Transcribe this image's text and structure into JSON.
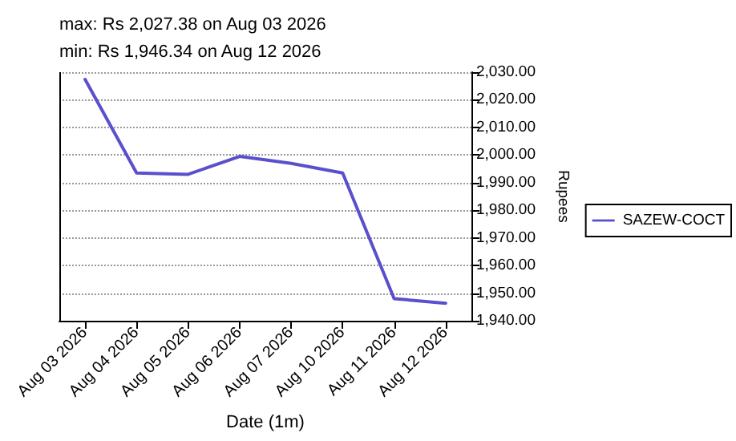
{
  "chart_data": {
    "type": "line",
    "annotations": [
      "max: Rs 2,027.38 on Aug 03 2026",
      "min: Rs 1,946.34 on Aug 12 2026"
    ],
    "xlabel": "Date (1m)",
    "ylabel": "Rupees",
    "categories": [
      "Aug 03 2026",
      "Aug 04 2026",
      "Aug 05 2026",
      "Aug 06 2026",
      "Aug 07 2026",
      "Aug 10 2026",
      "Aug 11 2026",
      "Aug 12 2026"
    ],
    "series": [
      {
        "name": "SAZEW-COCT",
        "color": "#5a50cc",
        "values": [
          2027.38,
          1993.5,
          1993,
          1999.5,
          1997,
          1993.5,
          1948,
          1946.34
        ]
      }
    ],
    "ylim": [
      1940,
      2030
    ],
    "yticks": [
      {
        "value": 1940,
        "label": "1,940.00"
      },
      {
        "value": 1950,
        "label": "1,950.00"
      },
      {
        "value": 1960,
        "label": "1,960.00"
      },
      {
        "value": 1970,
        "label": "1,970.00"
      },
      {
        "value": 1980,
        "label": "1,980.00"
      },
      {
        "value": 1990,
        "label": "1,990.00"
      },
      {
        "value": 2000,
        "label": "2,000.00"
      },
      {
        "value": 2010,
        "label": "2,010.00"
      },
      {
        "value": 2020,
        "label": "2,020.00"
      },
      {
        "value": 2030,
        "label": "2,030.00"
      }
    ],
    "grid": "y",
    "legend": "right",
    "marker": "none",
    "line_style": "solid"
  }
}
